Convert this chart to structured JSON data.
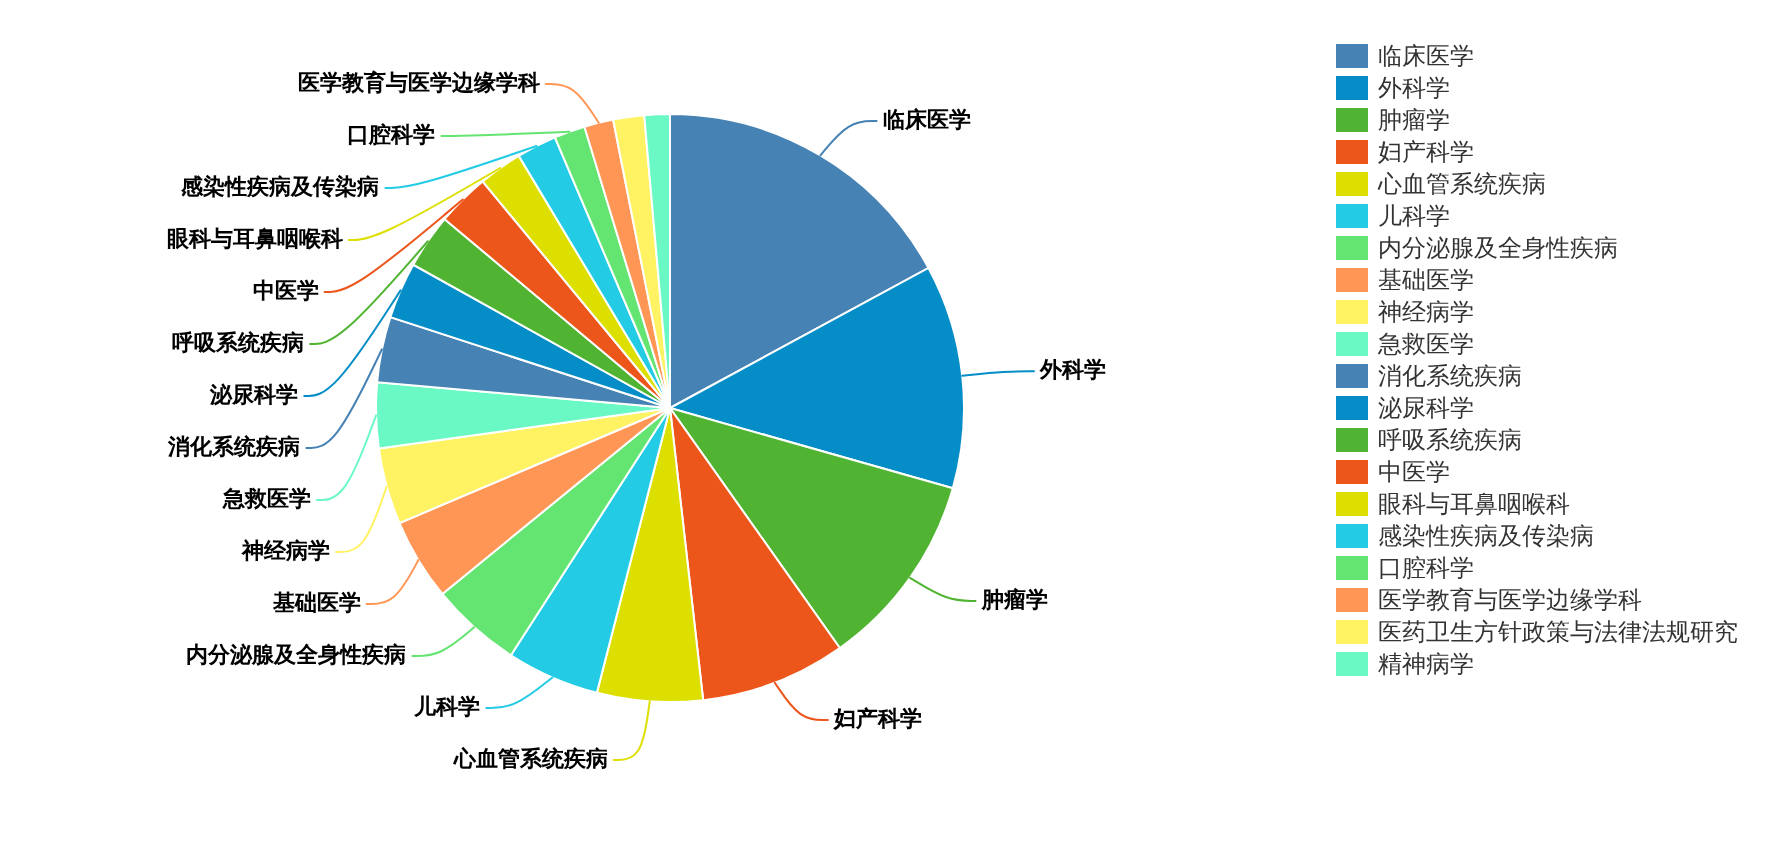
{
  "chart_data": {
    "type": "pie",
    "categories": [
      "临床医学",
      "外科学",
      "肿瘤学",
      "妇产科学",
      "心血管系统疾病",
      "儿科学",
      "内分泌腺及全身性疾病",
      "基础医学",
      "神经病学",
      "急救医学",
      "消化系统疾病",
      "泌尿科学",
      "呼吸系统疾病",
      "中医学",
      "眼科与耳鼻咽喉科",
      "感染性疾病及传染病",
      "口腔科学",
      "医学教育与医学边缘学科",
      "医药卫生方针政策与法律法规研究",
      "精神病学"
    ],
    "values": [
      17.1,
      12.3,
      10.8,
      8.0,
      5.8,
      5.1,
      5.0,
      4.5,
      4.2,
      3.6,
      3.6,
      3.1,
      3.0,
      2.9,
      2.4,
      2.2,
      1.7,
      1.6,
      1.7,
      1.4
    ],
    "colors": [
      "#4682b4",
      "#058dc7",
      "#50b432",
      "#ed561b",
      "#dddf00",
      "#24cbe5",
      "#64e572",
      "#ff9655",
      "#fff263",
      "#6af9c4",
      "#4682b4",
      "#058dc7",
      "#50b432",
      "#ed561b",
      "#dddf00",
      "#24cbe5",
      "#64e572",
      "#ff9655",
      "#fff263",
      "#6af9c4"
    ],
    "legend": "top right"
  }
}
